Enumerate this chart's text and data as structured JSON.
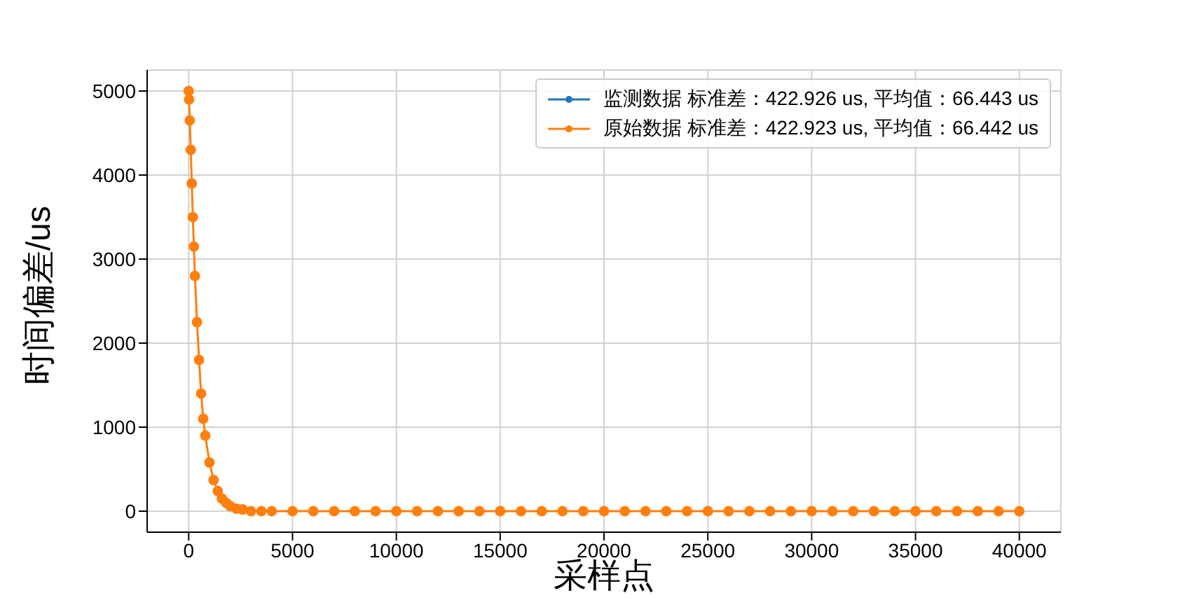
{
  "chart_data": {
    "type": "line",
    "xlabel": "采样点",
    "ylabel": "时间偏差/us",
    "x": [
      0,
      20,
      50,
      100,
      150,
      200,
      250,
      300,
      400,
      500,
      600,
      700,
      800,
      1000,
      1200,
      1400,
      1600,
      1800,
      2000,
      2300,
      2600,
      3000,
      3500,
      4000,
      5000,
      6000,
      7000,
      8000,
      9000,
      10000,
      11000,
      12000,
      13000,
      14000,
      15000,
      16000,
      17000,
      18000,
      19000,
      20000,
      21000,
      22000,
      23000,
      24000,
      25000,
      26000,
      27000,
      28000,
      29000,
      30000,
      31000,
      32000,
      33000,
      34000,
      35000,
      36000,
      37000,
      38000,
      39000,
      40000
    ],
    "series": [
      {
        "name": "监测数据 标准差：422.926 us, 平均值：66.443 us",
        "color": "#1f77b4",
        "values": [
          null,
          null,
          null,
          null,
          null,
          null,
          null,
          null,
          null,
          null,
          null,
          null,
          null,
          null,
          null,
          null,
          null,
          null,
          null,
          null,
          null,
          null,
          null,
          null,
          null,
          null,
          null,
          null,
          null,
          null,
          null,
          null,
          null,
          null,
          null,
          null,
          null,
          null,
          null,
          null,
          null,
          null,
          null,
          null,
          null,
          null,
          null,
          null,
          null,
          null,
          null,
          null,
          null,
          null,
          null,
          null,
          null,
          null,
          null,
          null
        ]
      },
      {
        "name": "原始数据 标准差：422.923 us, 平均值：66.442 us",
        "color": "#ff7f0e",
        "values": [
          5000,
          4900,
          4650,
          4300,
          3900,
          3500,
          3150,
          2800,
          2250,
          1800,
          1400,
          1100,
          900,
          580,
          370,
          240,
          150,
          100,
          60,
          30,
          20,
          0,
          0,
          0,
          0,
          0,
          0,
          0,
          0,
          0,
          0,
          0,
          0,
          0,
          0,
          0,
          0,
          0,
          0,
          0,
          0,
          0,
          0,
          0,
          0,
          0,
          0,
          0,
          0,
          0,
          0,
          0,
          0,
          0,
          0,
          0,
          0,
          0,
          0,
          0
        ]
      }
    ],
    "xlim": [
      -2000,
      42000
    ],
    "xticks": [
      0,
      5000,
      10000,
      15000,
      20000,
      25000,
      30000,
      35000,
      40000
    ],
    "ylim": [
      -250,
      5250
    ],
    "yticks": [
      0,
      1000,
      2000,
      3000,
      4000,
      5000
    ],
    "grid": true,
    "legend": "top right",
    "marker": "circle",
    "line_style": "solid"
  }
}
